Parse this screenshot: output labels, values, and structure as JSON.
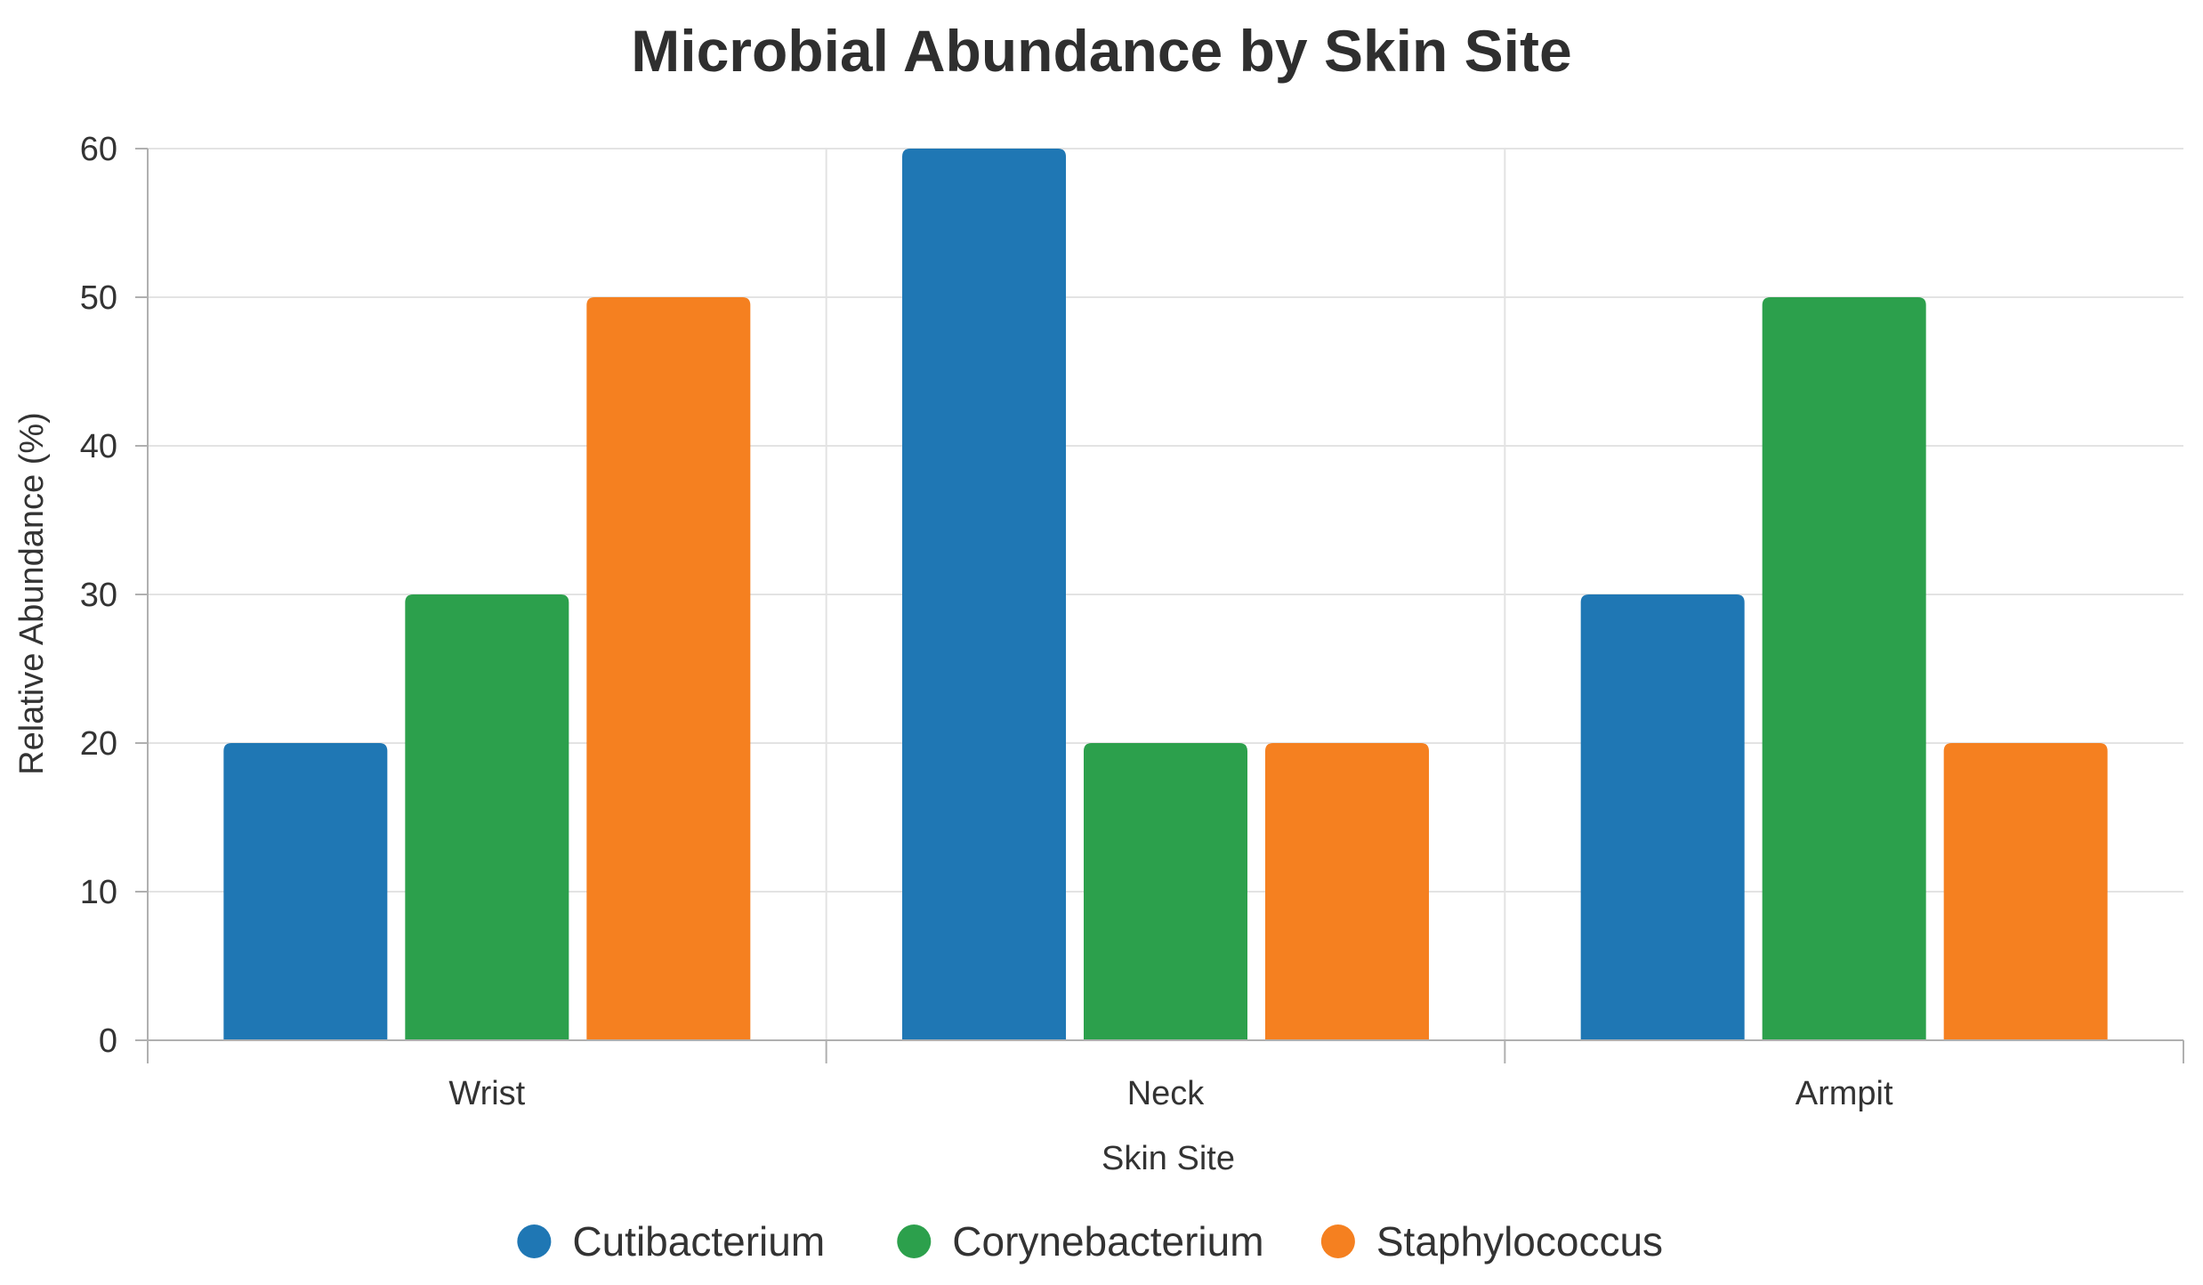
{
  "chart_data": {
    "type": "bar",
    "title": "Microbial Abundance by Skin Site",
    "xlabel": "Skin Site",
    "ylabel": "Relative Abundance (%)",
    "categories": [
      "Wrist",
      "Neck",
      "Armpit"
    ],
    "ylim": [
      0,
      60
    ],
    "yticks": [
      "0",
      "10",
      "20",
      "30",
      "40",
      "50",
      "60"
    ],
    "grid": true,
    "legend_position": "bottom-center",
    "series": [
      {
        "name": "Cutibacterium",
        "color": "#1f77b4",
        "values": [
          20,
          60,
          30
        ]
      },
      {
        "name": "Corynebacterium",
        "color": "#2ca04c",
        "values": [
          30,
          20,
          50
        ]
      },
      {
        "name": "Staphylococcus",
        "color": "#f58020",
        "values": [
          50,
          20,
          20
        ]
      }
    ]
  }
}
